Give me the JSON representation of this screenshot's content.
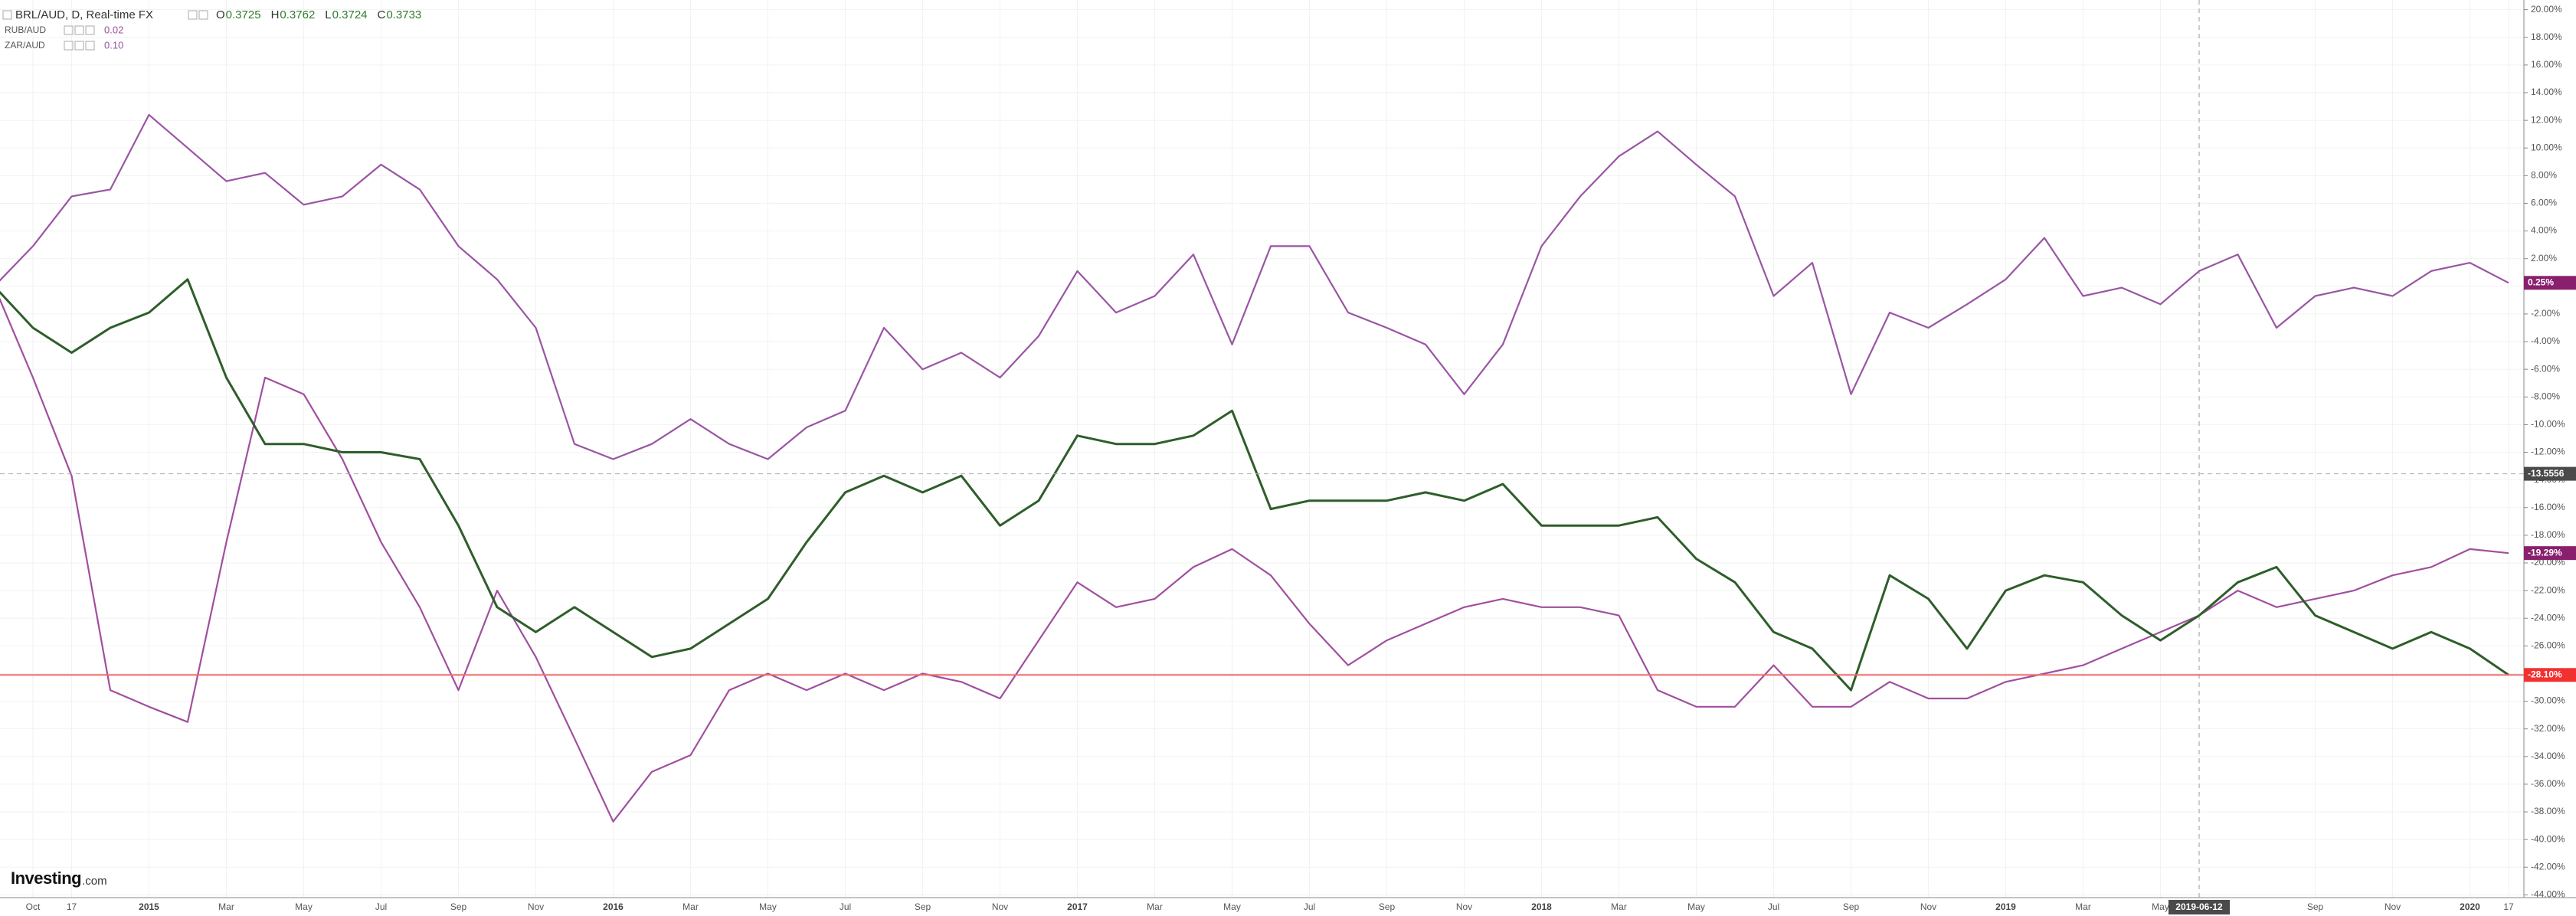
{
  "chart_data": {
    "type": "line",
    "ohlc": [
      {
        "key": "O",
        "value": "0.3725"
      },
      {
        "key": "H",
        "value": "0.3762"
      },
      {
        "key": "L",
        "value": "0.3724"
      },
      {
        "key": "C",
        "value": "0.3733"
      }
    ],
    "watermark": {
      "brand": "Investing",
      "suffix": ".com"
    },
    "categories": [
      null,
      "Oct",
      "17",
      null,
      "2015",
      null,
      "Mar",
      null,
      "May",
      null,
      "Jul",
      null,
      "Sep",
      null,
      "Nov",
      null,
      "2016",
      null,
      "Mar",
      null,
      "May",
      null,
      "Jul",
      null,
      "Sep",
      null,
      "Nov",
      null,
      "2017",
      null,
      "Mar",
      null,
      "May",
      null,
      "Jul",
      null,
      "Sep",
      null,
      "Nov",
      null,
      "2018",
      null,
      "Mar",
      null,
      "May",
      null,
      "Jul",
      null,
      "Sep",
      null,
      "Nov",
      null,
      "2019",
      null,
      "Mar",
      null,
      "May",
      "2019-06-12",
      null,
      null,
      "Sep",
      null,
      "Nov",
      null,
      "2020",
      "17"
    ],
    "series": [
      {
        "name": "BRL/AUD, D, Real-time FX",
        "color": "#2e5e2a",
        "label_color": "#f23030",
        "values": [
          0,
          -3,
          -4.8,
          -3,
          -1.9,
          0.5,
          -6.6,
          -11.4,
          -11.4,
          -12,
          -12,
          -12.5,
          -17.3,
          -23.2,
          -25,
          -23.2,
          -25,
          -26.8,
          -26.2,
          -24.4,
          -22.6,
          -18.5,
          -14.9,
          -13.7,
          -14.9,
          -13.7,
          -17.3,
          -15.5,
          -10.8,
          -11.4,
          -11.4,
          -10.8,
          -9,
          -16.1,
          -15.5,
          -15.5,
          -15.5,
          -14.9,
          -15.5,
          -14.3,
          -17.3,
          -17.3,
          -17.3,
          -16.7,
          -19.7,
          -21.4,
          -25,
          -26.2,
          -29.2,
          -20.9,
          -22.6,
          -26.2,
          -22,
          -20.9,
          -21.4,
          -23.8,
          -25.6,
          -23.8,
          -21.4,
          -20.3,
          -23.8,
          -25,
          -26.2,
          -25,
          -26.2,
          -28.1
        ],
        "value_labels": [
          null,
          null,
          null,
          null,
          null,
          null,
          null,
          null,
          null,
          null,
          null,
          null,
          null,
          null,
          null,
          null,
          null,
          null,
          null,
          null,
          null,
          null,
          null,
          null,
          null,
          null,
          null,
          null,
          null,
          null,
          null,
          null,
          null,
          null,
          null,
          null,
          null,
          null,
          null,
          null,
          null,
          null,
          null,
          null,
          null,
          null,
          null,
          null,
          null,
          null,
          null,
          null,
          null,
          null,
          null,
          null,
          null,
          null,
          null,
          null,
          null,
          null,
          null,
          null,
          null,
          "-28.10%"
        ]
      },
      {
        "name": "RUB/AUD",
        "legend_value": "0.02",
        "color": "#a04f9e",
        "label_color": "#8a1f6e",
        "values": [
          0,
          -6.6,
          -13.7,
          -29.2,
          -30.4,
          -31.5,
          -18.5,
          -6.6,
          -7.8,
          -12.5,
          -18.5,
          -23.2,
          -29.2,
          -22,
          -26.8,
          -32.7,
          -38.7,
          -35.1,
          -33.9,
          -29.2,
          -28,
          -29.2,
          -28,
          -29.2,
          -28,
          -28.6,
          -29.8,
          -25.6,
          -21.4,
          -23.2,
          -22.6,
          -20.3,
          -19,
          -20.9,
          -24.4,
          -27.4,
          -25.6,
          -24.4,
          -23.2,
          -22.6,
          -23.2,
          -23.2,
          -23.8,
          -29.2,
          -30.4,
          -30.4,
          -27.4,
          -30.4,
          -30.4,
          -28.6,
          -29.8,
          -29.8,
          -28.6,
          -28,
          -27.4,
          -26.2,
          -25,
          -23.8,
          -22,
          -23.2,
          -22.6,
          -22,
          -20.9,
          -20.3,
          -19,
          -19.29
        ],
        "value_labels": [
          null,
          null,
          null,
          null,
          null,
          null,
          null,
          null,
          null,
          null,
          null,
          null,
          null,
          null,
          null,
          null,
          null,
          null,
          null,
          null,
          null,
          null,
          null,
          null,
          null,
          null,
          null,
          null,
          null,
          null,
          null,
          null,
          null,
          null,
          null,
          null,
          null,
          null,
          null,
          null,
          null,
          null,
          null,
          null,
          null,
          null,
          null,
          null,
          null,
          null,
          null,
          null,
          null,
          null,
          null,
          null,
          null,
          null,
          null,
          null,
          null,
          null,
          null,
          null,
          null,
          "-19.29%"
        ]
      },
      {
        "name": "ZAR/AUD",
        "legend_value": "0.10",
        "color": "#9a55a4",
        "label_color": "#8a1f6e",
        "values": [
          0,
          2.9,
          6.5,
          7,
          12.4,
          10,
          7.6,
          8.2,
          5.9,
          6.5,
          8.8,
          7,
          2.9,
          0.5,
          -3,
          -11.4,
          -12.5,
          -11.4,
          -9.6,
          -11.4,
          -12.5,
          -10.2,
          -9,
          -3,
          -6,
          -4.8,
          -6.6,
          -3.6,
          1.1,
          -1.9,
          -0.7,
          2.3,
          -4.2,
          2.9,
          2.9,
          -1.9,
          -3,
          -4.2,
          -7.8,
          -4.2,
          2.9,
          6.5,
          9.4,
          11.2,
          8.8,
          6.5,
          -0.7,
          1.7,
          -7.8,
          -1.9,
          -3,
          -1.3,
          0.5,
          3.5,
          -0.7,
          -0.1,
          -1.3,
          1.1,
          2.3,
          -3,
          -0.7,
          -0.1,
          -0.7,
          1.1,
          1.7,
          0.25
        ],
        "value_labels": [
          null,
          null,
          null,
          null,
          null,
          null,
          null,
          null,
          null,
          null,
          null,
          null,
          null,
          null,
          null,
          null,
          null,
          null,
          null,
          null,
          null,
          null,
          null,
          null,
          null,
          null,
          null,
          null,
          null,
          null,
          null,
          null,
          null,
          null,
          null,
          null,
          null,
          null,
          null,
          null,
          null,
          null,
          null,
          null,
          null,
          null,
          null,
          null,
          null,
          null,
          null,
          null,
          null,
          null,
          null,
          null,
          null,
          null,
          null,
          null,
          null,
          null,
          null,
          null,
          null,
          "0.25%"
        ]
      }
    ],
    "crosshair": {
      "value": -13.5556,
      "label": "-13.5556"
    },
    "ylim": [
      -44.2,
      20.7
    ],
    "yticks": [
      {
        "value": 20,
        "label": "20.00%"
      },
      {
        "value": 18,
        "label": "18.00%"
      },
      {
        "value": 16,
        "label": "16.00%"
      },
      {
        "value": 14,
        "label": "14.00%"
      },
      {
        "value": 12,
        "label": "12.00%"
      },
      {
        "value": 10,
        "label": "10.00%"
      },
      {
        "value": 8,
        "label": "8.00%"
      },
      {
        "value": 6,
        "label": "6.00%"
      },
      {
        "value": 4,
        "label": "4.00%"
      },
      {
        "value": 2,
        "label": "2.00%"
      },
      {
        "value": 0,
        "label": "0.00%"
      },
      {
        "value": -2,
        "label": "-2.00%"
      },
      {
        "value": -4,
        "label": "-4.00%"
      },
      {
        "value": -6,
        "label": "-6.00%"
      },
      {
        "value": -8,
        "label": "-8.00%"
      },
      {
        "value": -10,
        "label": "-10.00%"
      },
      {
        "value": -12,
        "label": "-12.00%"
      },
      {
        "value": -14,
        "label": "-14.00%"
      },
      {
        "value": -16,
        "label": "-16.00%"
      },
      {
        "value": -18,
        "label": "-18.00%"
      },
      {
        "value": -20,
        "label": "-20.00%"
      },
      {
        "value": -22,
        "label": "-22.00%"
      },
      {
        "value": -24,
        "label": "-24.00%"
      },
      {
        "value": -26,
        "label": "-26.00%"
      },
      {
        "value": -28,
        "label": "-28.00%"
      },
      {
        "value": -30,
        "label": "-30.00%"
      },
      {
        "value": -32,
        "label": "-32.00%"
      },
      {
        "value": -34,
        "label": "-34.00%"
      },
      {
        "value": -36,
        "label": "-36.00%"
      },
      {
        "value": -38,
        "label": "-38.00%"
      },
      {
        "value": -40,
        "label": "-40.00%"
      },
      {
        "value": -42,
        "label": "-42.00%"
      },
      {
        "value": -44,
        "label": "-44.00%"
      }
    ],
    "grid": true,
    "price_line_color": "#f26d6d"
  }
}
